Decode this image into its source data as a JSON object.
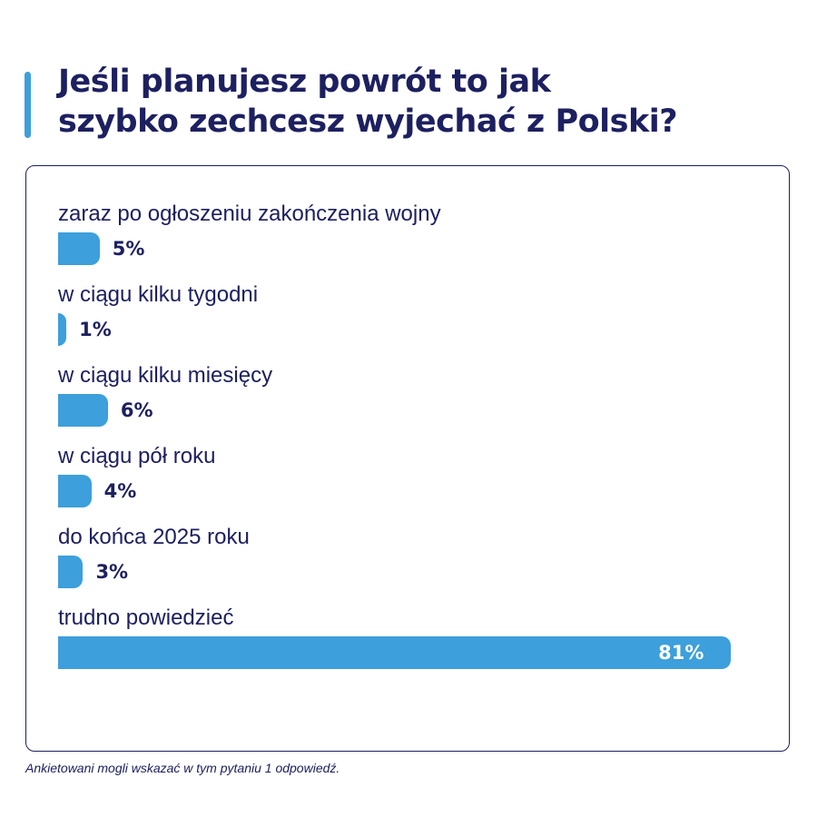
{
  "header": {
    "title": "Jeśli planujesz powrót to jak\nszybko zechcesz wyjechać z Polski?"
  },
  "footnote": "Ankietowani mogli wskazać w tym pytaniu 1 odpowiedź.",
  "colors": {
    "bar": "#3d9fdb",
    "text": "#1d2060",
    "accent": "#3d9fdb"
  },
  "chart_data": {
    "type": "bar",
    "orientation": "horizontal",
    "categories": [
      "zaraz po ogłoszeniu zakończenia wojny",
      "w ciągu kilku tygodni",
      "w ciągu kilku miesięcy",
      "w ciągu pół roku",
      "do końca 2025 roku",
      "trudno powiedzieć"
    ],
    "values": [
      5,
      1,
      6,
      4,
      3,
      81
    ],
    "value_labels": [
      "5%",
      "1%",
      "6%",
      "4%",
      "3%",
      "81%"
    ],
    "unit": "%",
    "xlim": [
      0,
      100
    ],
    "grid": false,
    "legend": "none"
  }
}
